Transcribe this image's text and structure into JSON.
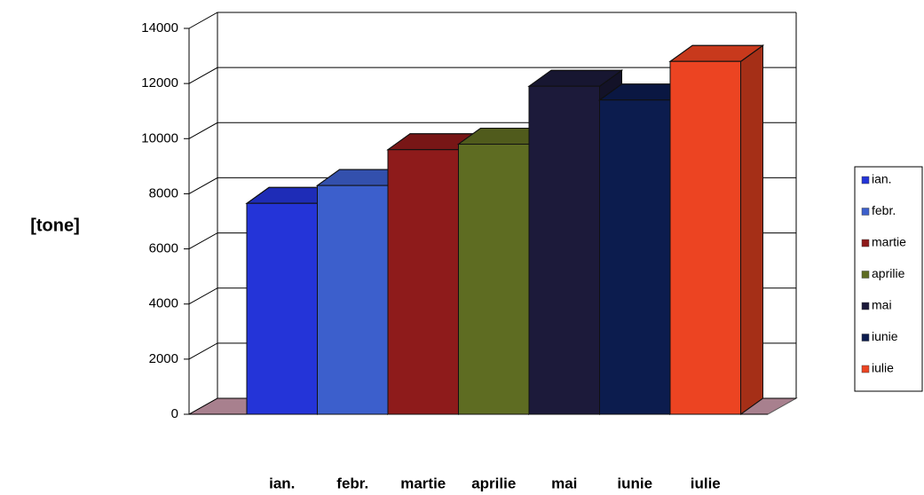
{
  "chart_data": {
    "type": "bar3d",
    "y_label": "[tone]",
    "categories": [
      "ian.",
      "febr.",
      "martie",
      "aprilie",
      "mai",
      "iunie",
      "iulie"
    ],
    "values": [
      7650,
      8300,
      9600,
      9800,
      11900,
      11400,
      12800
    ],
    "colors": [
      "#2434d8",
      "#3c5fcc",
      "#8e1b1b",
      "#5e6c22",
      "#1c1a3a",
      "#0c1c4e",
      "#ec4422"
    ],
    "ylim": [
      0,
      14000
    ],
    "yticks": [
      0,
      2000,
      4000,
      6000,
      8000,
      10000,
      12000,
      14000
    ],
    "grid": true,
    "legend": "right"
  }
}
